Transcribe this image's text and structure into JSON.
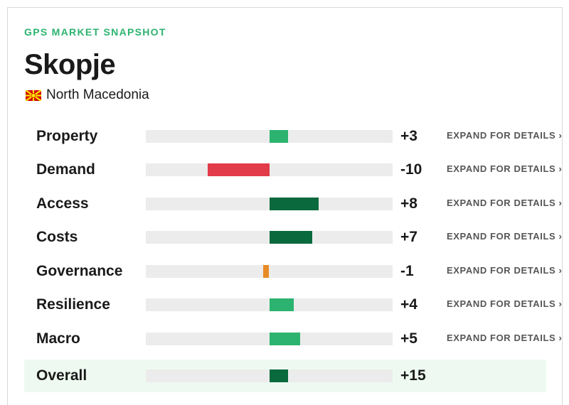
{
  "header": {
    "snapshot_label": "GPS MARKET SNAPSHOT",
    "city": "Skopje",
    "country": "North Macedonia",
    "flag_icon": "north-macedonia-flag-icon"
  },
  "scale": {
    "min": -20,
    "max": 20
  },
  "colors": {
    "positive_light": "#2cb36f",
    "positive_dark": "#0b6a3d",
    "negative_strong": "#e23b4a",
    "negative_light": "#e78a25",
    "track": "#ececec",
    "overall_bg": "#eefaf1"
  },
  "metrics": [
    {
      "label": "Property",
      "value": 3,
      "display": "+3",
      "expand": "EXPAND FOR DETAILS ›"
    },
    {
      "label": "Demand",
      "value": -10,
      "display": "-10",
      "expand": "EXPAND FOR DETAILS ›"
    },
    {
      "label": "Access",
      "value": 8,
      "display": "+8",
      "expand": "EXPAND FOR DETAILS ›"
    },
    {
      "label": "Costs",
      "value": 7,
      "display": "+7",
      "expand": "EXPAND FOR DETAILS ›"
    },
    {
      "label": "Governance",
      "value": -1,
      "display": "-1",
      "expand": "EXPAND FOR DETAILS ›"
    },
    {
      "label": "Resilience",
      "value": 4,
      "display": "+4",
      "expand": "EXPAND FOR DETAILS ›"
    },
    {
      "label": "Macro",
      "value": 5,
      "display": "+5",
      "expand": "EXPAND FOR DETAILS ›"
    }
  ],
  "overall": {
    "label": "Overall",
    "value": 15,
    "display": "+15",
    "scale_max": 100
  }
}
